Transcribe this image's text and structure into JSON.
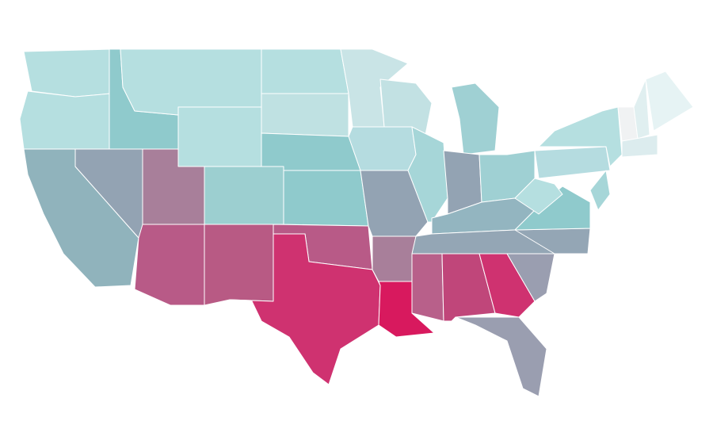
{
  "chart_data": {
    "type": "choropleth",
    "colors": [
      "#b5dfe0",
      "#b5dfe0",
      "#90b3bc",
      "#8fcacc",
      "#b5dfe0",
      "#b5dfe0",
      "#93a3b3",
      "#a87f9a",
      "#b85a87",
      "#b85a84",
      "#9ccfd0",
      "#b5dfe0",
      "#bfe1e2",
      "#8fcacc",
      "#8fcacc",
      "#b85a87",
      "#cf3270",
      "#c9e4e6",
      "#b5dce0",
      "#93a3b3",
      "#a87f9a",
      "#d8195e",
      "#c2e1e3",
      "#a6d6d8",
      "#9fd0d3",
      "#93a3b3",
      "#9fd0d3",
      "#93b5c0",
      "#94a6b5",
      "#b8608a",
      "#c0467a",
      "#cf3270",
      "#9a9eb0",
      "#9a9eb0",
      "#94a6b5",
      "#8fcacc",
      "#b5dfe0",
      "#b5dce0",
      "#b5dfe0",
      "#a6d6d8",
      "#f0f2f3",
      "#e0eff0",
      "#e6f3f4",
      "#dcecee"
    ]
  }
}
